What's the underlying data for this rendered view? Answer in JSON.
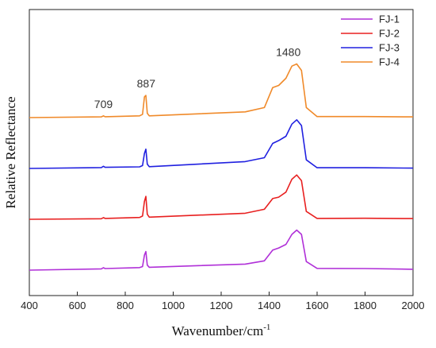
{
  "chart_data": {
    "type": "line",
    "title": "",
    "xlabel": "Wavenumber/cm",
    "xlabel_superscript": "-1",
    "ylabel": "Relative Reflectance",
    "xlim": [
      400,
      2000
    ],
    "x_ticks": [
      400,
      600,
      800,
      1000,
      1200,
      1400,
      1600,
      1800,
      2000
    ],
    "y_tick_labels": "none",
    "grid": false,
    "legend_position": "top-right",
    "annotations": [
      {
        "text": "709",
        "x": 709
      },
      {
        "text": "887",
        "x": 887
      },
      {
        "text": "1480",
        "x": 1480
      }
    ],
    "series": [
      {
        "name": "FJ-1",
        "color": "#B030D8",
        "offset": 0,
        "points": [
          [
            400,
            0
          ],
          [
            700,
            0.018
          ],
          [
            709,
            0.034
          ],
          [
            716,
            0.022
          ],
          [
            860,
            0.036
          ],
          [
            872,
            0.05
          ],
          [
            880,
            0.21
          ],
          [
            886,
            0.26
          ],
          [
            892,
            0.07
          ],
          [
            900,
            0.04
          ],
          [
            1300,
            0.085
          ],
          [
            1380,
            0.13
          ],
          [
            1415,
            0.28
          ],
          [
            1440,
            0.31
          ],
          [
            1470,
            0.36
          ],
          [
            1495,
            0.5
          ],
          [
            1515,
            0.56
          ],
          [
            1535,
            0.5
          ],
          [
            1555,
            0.12
          ],
          [
            1600,
            0.024
          ],
          [
            1800,
            0.022
          ],
          [
            2000,
            0.012
          ]
        ]
      },
      {
        "name": "FJ-2",
        "color": "#E82020",
        "offset": 1,
        "points": [
          [
            400,
            0
          ],
          [
            700,
            0.008
          ],
          [
            709,
            0.023
          ],
          [
            716,
            0.012
          ],
          [
            860,
            0.026
          ],
          [
            872,
            0.045
          ],
          [
            880,
            0.25
          ],
          [
            886,
            0.32
          ],
          [
            892,
            0.07
          ],
          [
            900,
            0.03
          ],
          [
            1300,
            0.085
          ],
          [
            1380,
            0.14
          ],
          [
            1415,
            0.29
          ],
          [
            1440,
            0.31
          ],
          [
            1470,
            0.38
          ],
          [
            1495,
            0.56
          ],
          [
            1515,
            0.62
          ],
          [
            1535,
            0.54
          ],
          [
            1555,
            0.11
          ],
          [
            1600,
            0.012
          ],
          [
            1800,
            0.014
          ],
          [
            2000,
            0.01
          ]
        ]
      },
      {
        "name": "FJ-3",
        "color": "#2020E0",
        "offset": 2,
        "points": [
          [
            400,
            0
          ],
          [
            700,
            0.012
          ],
          [
            709,
            0.03
          ],
          [
            716,
            0.016
          ],
          [
            860,
            0.022
          ],
          [
            872,
            0.04
          ],
          [
            880,
            0.21
          ],
          [
            886,
            0.27
          ],
          [
            892,
            0.06
          ],
          [
            900,
            0.025
          ],
          [
            1300,
            0.095
          ],
          [
            1380,
            0.15
          ],
          [
            1415,
            0.35
          ],
          [
            1440,
            0.39
          ],
          [
            1470,
            0.45
          ],
          [
            1495,
            0.62
          ],
          [
            1515,
            0.68
          ],
          [
            1535,
            0.6
          ],
          [
            1555,
            0.12
          ],
          [
            1600,
            0.01
          ],
          [
            1800,
            0.01
          ],
          [
            2000,
            0.004
          ]
        ]
      },
      {
        "name": "FJ-4",
        "color": "#F08A2A",
        "offset": 3,
        "points": [
          [
            400,
            0
          ],
          [
            700,
            0.01
          ],
          [
            709,
            0.025
          ],
          [
            716,
            0.012
          ],
          [
            860,
            0.025
          ],
          [
            872,
            0.045
          ],
          [
            880,
            0.29
          ],
          [
            886,
            0.31
          ],
          [
            892,
            0.06
          ],
          [
            900,
            0.025
          ],
          [
            1300,
            0.08
          ],
          [
            1380,
            0.14
          ],
          [
            1415,
            0.42
          ],
          [
            1440,
            0.45
          ],
          [
            1470,
            0.55
          ],
          [
            1495,
            0.72
          ],
          [
            1515,
            0.75
          ],
          [
            1535,
            0.66
          ],
          [
            1555,
            0.14
          ],
          [
            1600,
            0.015
          ],
          [
            1800,
            0.015
          ],
          [
            2000,
            0.01
          ]
        ]
      }
    ]
  }
}
